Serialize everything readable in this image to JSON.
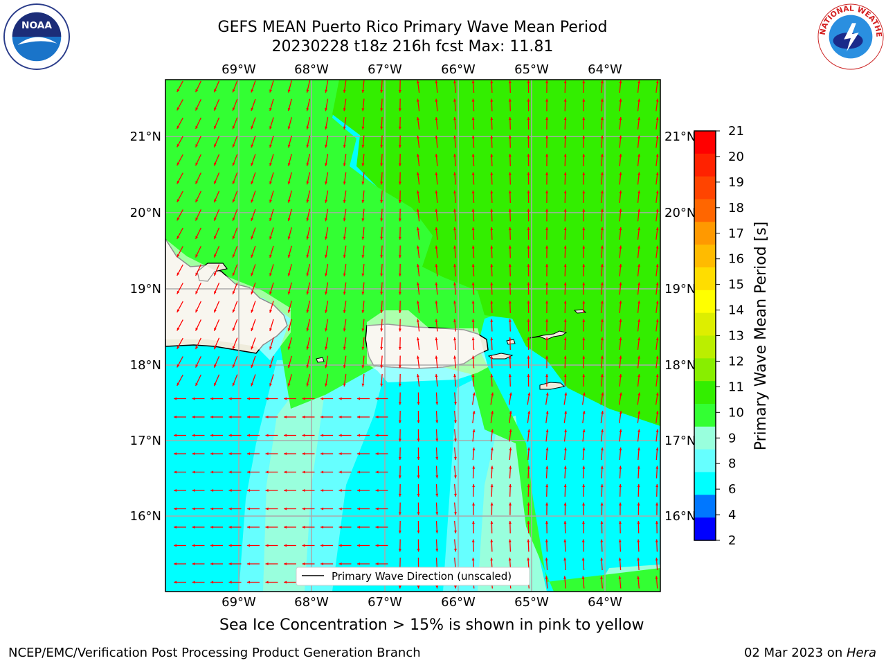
{
  "title": {
    "line1": "GEFS MEAN Puerto Rico Primary Wave Mean Period",
    "line2": "20230228 t18z 216h fcst   Max: 11.81"
  },
  "logos": {
    "left": "noaa-logo",
    "left_text": "NOAA",
    "right": "nws-logo",
    "right_text": "NATIONAL WEATHER SERVICE"
  },
  "map": {
    "lon_labels": [
      "69°W",
      "68°W",
      "67°W",
      "66°W",
      "65°W",
      "64°W"
    ],
    "lat_labels": [
      "21°N",
      "20°N",
      "19°N",
      "18°N",
      "17°N",
      "16°N"
    ],
    "legend_label": "Primary Wave Direction (unscaled)",
    "colors": {
      "land": "#efecdc",
      "green_dark": "#33ee00",
      "green_light": "#33ff33",
      "aqua_light": "#99ffdd",
      "cyan_mid": "#66ffff",
      "cyan": "#00ffff",
      "arrow": "#ff0000"
    }
  },
  "colorbar": {
    "label": "Primary Wave Mean Period [s]",
    "ticks": [
      "21",
      "20",
      "19",
      "18",
      "17",
      "16",
      "15",
      "14",
      "13",
      "12",
      "11",
      "10",
      "9",
      "8",
      "6",
      "4",
      "2"
    ],
    "colors": [
      "#ff0000",
      "#ff2200",
      "#ff4400",
      "#ff6600",
      "#ff9900",
      "#ffbb00",
      "#ffdd00",
      "#ffff00",
      "#ddee00",
      "#bbee00",
      "#88ee00",
      "#33ee00",
      "#33ff33",
      "#99ffdd",
      "#66ffff",
      "#00ffff",
      "#0077ff",
      "#0000ff"
    ]
  },
  "note": "Sea Ice Concentration > 15% is shown in pink to yellow",
  "footer": {
    "left": "NCEP/EMC/Verification Post Processing Product Generation Branch",
    "date": "02 Mar 2023 on ",
    "host": "Hera"
  }
}
